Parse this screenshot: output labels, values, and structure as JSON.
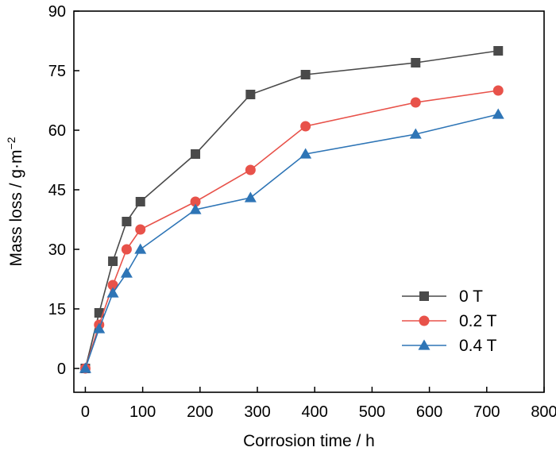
{
  "chart_data": {
    "type": "line",
    "title": "",
    "xlabel": "Corrosion time / h",
    "ylabel": "Mass loss / g·m",
    "ylabel_superscript": "−2",
    "xlim": [
      -20,
      800
    ],
    "ylim": [
      -6,
      90
    ],
    "xticks": [
      0,
      100,
      200,
      300,
      400,
      500,
      600,
      700,
      800
    ],
    "yticks": [
      0,
      15,
      30,
      45,
      60,
      75,
      90
    ],
    "grid": false,
    "legend_position": "bottom-right",
    "x": [
      0,
      24,
      48,
      72,
      96,
      192,
      288,
      384,
      576,
      720
    ],
    "series": [
      {
        "name": "0 T",
        "marker": "square",
        "color": "#4a4a4a",
        "values": [
          0,
          14,
          27,
          37,
          42,
          54,
          69,
          74,
          77,
          80
        ]
      },
      {
        "name": "0.2 T",
        "marker": "circle",
        "color": "#e8524a",
        "values": [
          0,
          11,
          21,
          30,
          35,
          42,
          50,
          61,
          67,
          70
        ]
      },
      {
        "name": "0.4 T",
        "marker": "triangle",
        "color": "#2e75b6",
        "values": [
          0,
          10,
          19,
          24,
          30,
          40,
          43,
          54,
          59,
          64
        ]
      }
    ]
  }
}
